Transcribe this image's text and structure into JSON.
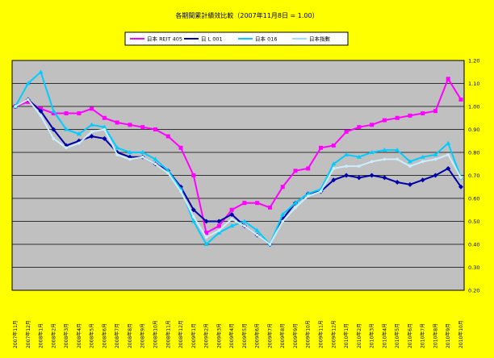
{
  "chart_data": {
    "type": "line",
    "title": "各期間累計績效比較（2007年11月8日 = 1.00）",
    "legend": [
      "日本 REIT 405",
      "日 L 001",
      "日本 016",
      "日本指數"
    ],
    "legend_position": "top",
    "y_axis_position": "right",
    "ylim": [
      0.2,
      1.2
    ],
    "yticks": [
      "0.20",
      "0.30",
      "0.40",
      "0.50",
      "0.60",
      "0.70",
      "0.80",
      "0.90",
      "1.00",
      "1.10",
      "1.20"
    ],
    "grid": true,
    "x": [
      "2007年11月",
      "2007年12月",
      "2008年1月",
      "2008年2月",
      "2008年3月",
      "2008年4月",
      "2008年5月",
      "2008年6月",
      "2008年7月",
      "2008年8月",
      "2008年9月",
      "2008年10月",
      "2008年11月",
      "2008年12月",
      "2009年1月",
      "2009年2月",
      "2009年3月",
      "2009年4月",
      "2009年5月",
      "2009年6月",
      "2009年7月",
      "2009年8月",
      "2009年9月",
      "2009年10月",
      "2009年11月",
      "2009年12月",
      "2010年1月",
      "2010年2月",
      "2010年3月",
      "2010年4月",
      "2010年5月",
      "2010年6月",
      "2010年7月",
      "2010年8月",
      "2010年9月",
      "2010年10月"
    ],
    "series": [
      {
        "name": "日本 REIT 405",
        "color": "#ff00ff",
        "values": [
          1.0,
          1.02,
          0.99,
          0.97,
          0.97,
          0.97,
          0.99,
          0.95,
          0.93,
          0.92,
          0.91,
          0.9,
          0.87,
          0.82,
          0.7,
          0.45,
          0.48,
          0.55,
          0.58,
          0.58,
          0.56,
          0.65,
          0.72,
          0.73,
          0.82,
          0.83,
          0.89,
          0.91,
          0.92,
          0.94,
          0.95,
          0.96,
          0.97,
          0.98,
          1.12,
          1.03
        ]
      },
      {
        "name": "日 L 001",
        "color": "#0000aa",
        "values": [
          1.0,
          1.03,
          0.98,
          0.9,
          0.83,
          0.85,
          0.87,
          0.86,
          0.8,
          0.78,
          0.78,
          0.75,
          0.72,
          0.65,
          0.55,
          0.5,
          0.5,
          0.53,
          0.48,
          0.44,
          0.4,
          0.51,
          0.58,
          0.62,
          0.63,
          0.68,
          0.7,
          0.69,
          0.7,
          0.69,
          0.67,
          0.66,
          0.68,
          0.7,
          0.73,
          0.65
        ]
      },
      {
        "name": "日本 016",
        "color": "#00ccff",
        "values": [
          1.0,
          1.1,
          1.15,
          0.98,
          0.9,
          0.88,
          0.92,
          0.91,
          0.82,
          0.8,
          0.8,
          0.77,
          0.72,
          0.64,
          0.5,
          0.4,
          0.45,
          0.48,
          0.5,
          0.46,
          0.4,
          0.53,
          0.58,
          0.62,
          0.64,
          0.75,
          0.79,
          0.78,
          0.8,
          0.81,
          0.81,
          0.76,
          0.78,
          0.79,
          0.84,
          0.69
        ]
      },
      {
        "name": "日本指數",
        "color": "#cceeff",
        "values": [
          1.0,
          1.03,
          0.96,
          0.86,
          0.82,
          0.84,
          0.89,
          0.9,
          0.79,
          0.77,
          0.78,
          0.75,
          0.71,
          0.63,
          0.52,
          0.43,
          0.46,
          0.51,
          0.48,
          0.44,
          0.4,
          0.5,
          0.56,
          0.61,
          0.63,
          0.73,
          0.74,
          0.74,
          0.76,
          0.77,
          0.77,
          0.74,
          0.76,
          0.77,
          0.79,
          0.69
        ]
      }
    ]
  },
  "colors": {
    "background": "#ffff00",
    "plot_area": "#c0c0c0",
    "gridline": "#000000",
    "legend_bg": "#ffffff"
  }
}
